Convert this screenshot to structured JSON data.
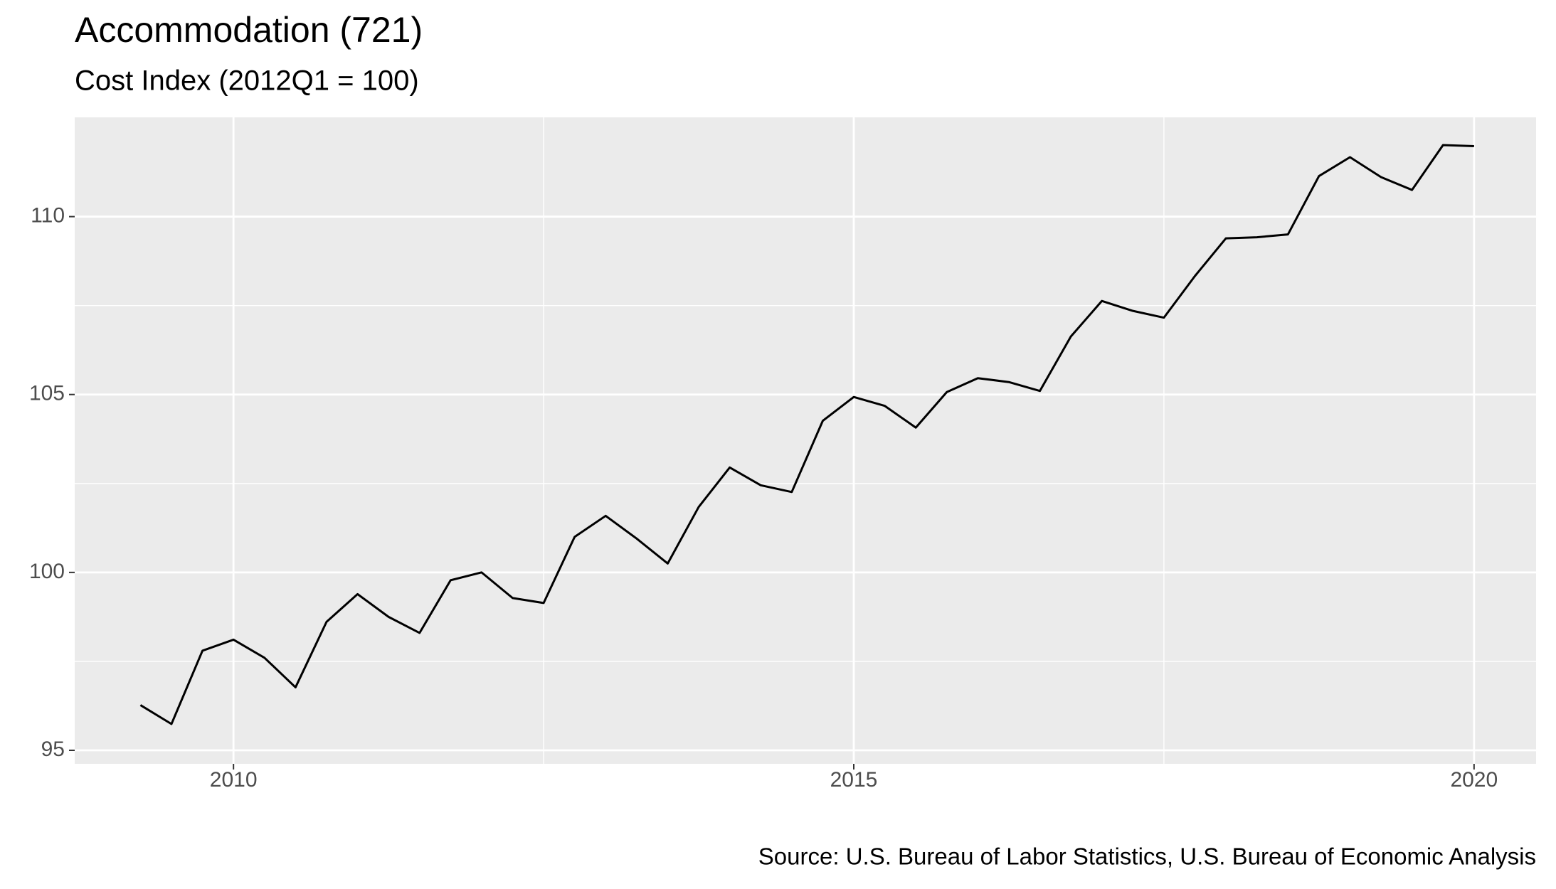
{
  "chart_data": {
    "type": "line",
    "title": "Accommodation (721)",
    "subtitle": "Cost Index (2012Q1 = 100)",
    "caption": "Source: U.S. Bureau of Labor Statistics, U.S. Bureau of Economic Analysis",
    "x": [
      2009.25,
      2009.5,
      2009.75,
      2010,
      2010.25,
      2010.5,
      2010.75,
      2011,
      2011.25,
      2011.5,
      2011.75,
      2012,
      2012.25,
      2012.5,
      2012.75,
      2013,
      2013.25,
      2013.5,
      2013.75,
      2014,
      2014.25,
      2014.5,
      2014.75,
      2015,
      2015.25,
      2015.5,
      2015.75,
      2016,
      2016.25,
      2016.5,
      2016.75,
      2017,
      2017.25,
      2017.5,
      2017.75,
      2018,
      2018.25,
      2018.5,
      2018.75,
      2019,
      2019.25,
      2019.5,
      2019.75,
      2020
    ],
    "series": [
      {
        "color": "#000000",
        "values": [
          96.27,
          95.74,
          97.8,
          98.11,
          97.6,
          96.77,
          98.61,
          99.39,
          98.75,
          98.3,
          99.78,
          100.0,
          99.28,
          99.14,
          101.0,
          101.59,
          100.95,
          100.25,
          101.84,
          102.95,
          102.45,
          102.26,
          104.26,
          104.93,
          104.68,
          104.07,
          105.07,
          105.46,
          105.35,
          105.1,
          106.63,
          107.63,
          107.35,
          107.16,
          108.33,
          109.39,
          109.42,
          109.5,
          111.14,
          111.67,
          111.11,
          110.75,
          112.01,
          111.98
        ]
      }
    ],
    "xlim": [
      2008.72,
      2020.5
    ],
    "xticks": [
      2010,
      2015,
      2020
    ],
    "ylim": [
      94.62,
      112.79
    ],
    "yticks": [
      95,
      100,
      105,
      110
    ],
    "grid": true
  }
}
